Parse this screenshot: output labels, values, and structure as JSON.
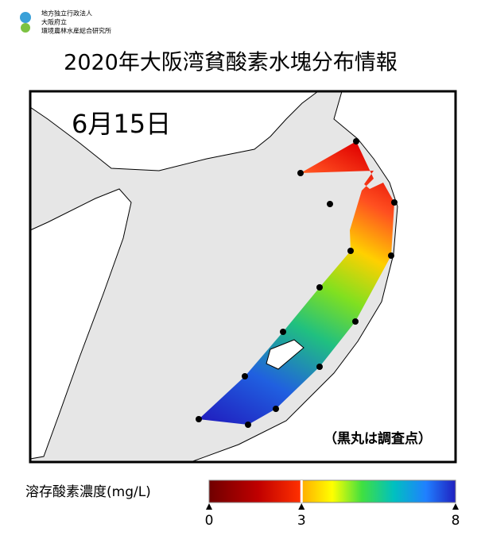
{
  "header": {
    "org_lines": [
      "地方独立行政法人",
      "大阪府立",
      "環境農林水産総合研究所"
    ],
    "title": "2020年大阪湾貧酸素水塊分布情報"
  },
  "map": {
    "date": "6月15日",
    "note": "（黒丸は調査点）"
  },
  "legend": {
    "label": "溶存酸素濃度(mg/L)",
    "range": [
      0,
      8
    ],
    "ticks": [
      0,
      3,
      8
    ]
  }
}
